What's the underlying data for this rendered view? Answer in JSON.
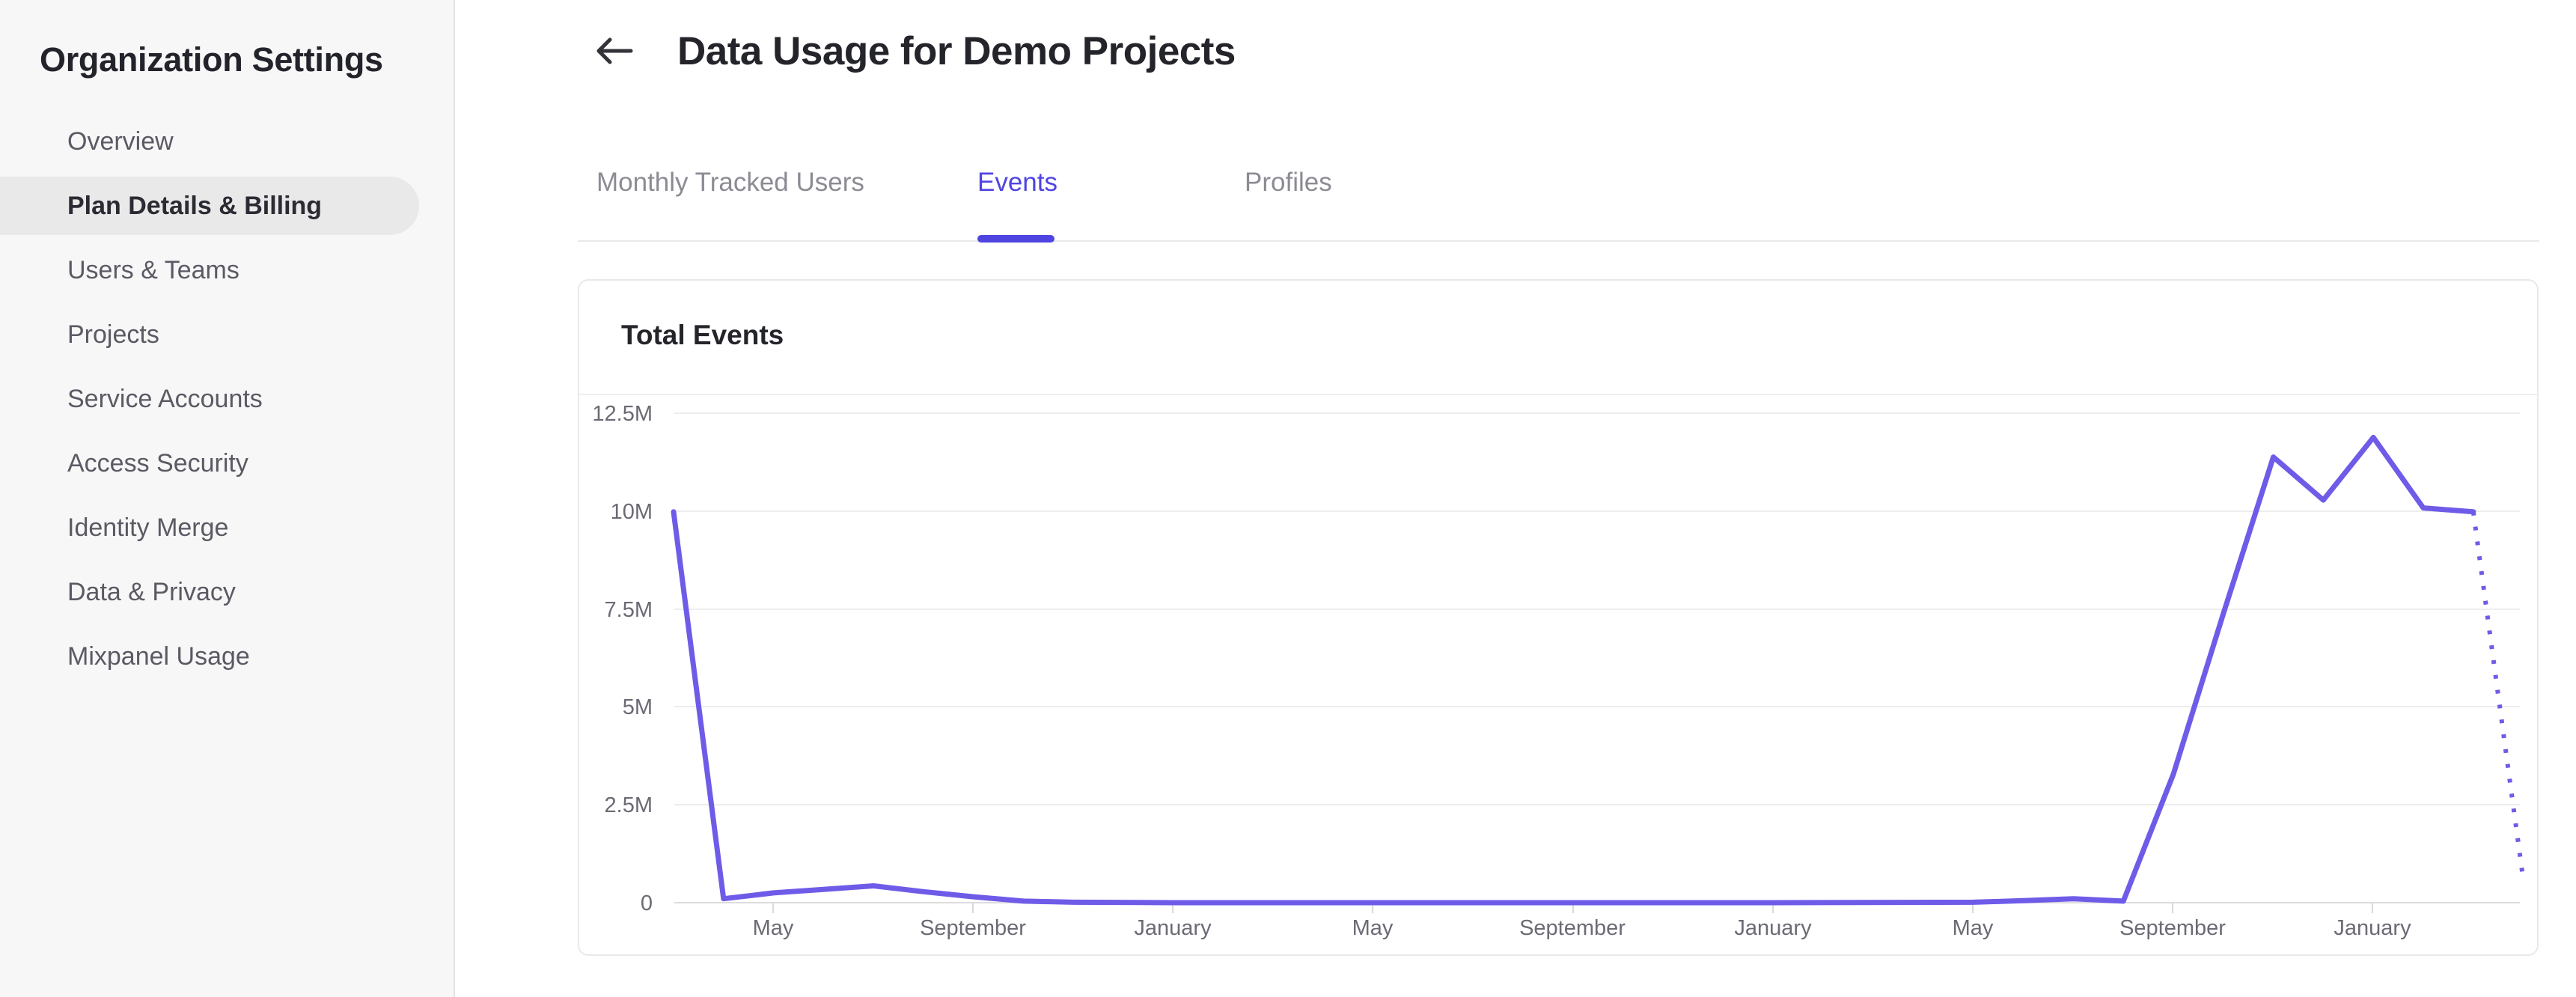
{
  "sidebar": {
    "title": "Organization Settings",
    "items": [
      {
        "label": "Overview",
        "selected": false
      },
      {
        "label": "Plan Details & Billing",
        "selected": true
      },
      {
        "label": "Users & Teams",
        "selected": false
      },
      {
        "label": "Projects",
        "selected": false
      },
      {
        "label": "Service Accounts",
        "selected": false
      },
      {
        "label": "Access Security",
        "selected": false
      },
      {
        "label": "Identity Merge",
        "selected": false
      },
      {
        "label": "Data & Privacy",
        "selected": false
      },
      {
        "label": "Mixpanel Usage",
        "selected": false
      }
    ]
  },
  "header": {
    "back_icon": "left-arrow",
    "title": "Data Usage for Demo Projects"
  },
  "tabs": [
    {
      "label": "Monthly Tracked Users",
      "active": false
    },
    {
      "label": "Events",
      "active": true
    },
    {
      "label": "Profiles",
      "active": false
    }
  ],
  "card": {
    "title": "Total Events"
  },
  "colors": {
    "accent": "#4f44e0",
    "line": "#6e5ce8",
    "sidebar_bg": "#f7f7f7",
    "selected_pill": "#e9e9e9",
    "grid": "#ededed",
    "axis_text": "#6a6a74",
    "dark_text": "#24242b",
    "muted_text": "#8b8b94"
  },
  "chart_data": {
    "type": "line",
    "title": "Total Events",
    "series_name": "Total Events",
    "legend": "none",
    "grid": "horizontal",
    "line_color": "#6e5ce8",
    "ylabel": "",
    "xlabel": "",
    "ylim_millions": [
      0,
      12.5
    ],
    "y_ticks": [
      "12.5M",
      "10M",
      "7.5M",
      "5M",
      "2.5M",
      "0"
    ],
    "y_tick_values_millions": [
      12.5,
      10,
      7.5,
      5,
      2.5,
      0
    ],
    "x_tick_labels": [
      "May",
      "September",
      "January",
      "May",
      "September",
      "January",
      "May",
      "September",
      "January"
    ],
    "x_tick_month_indices": [
      2,
      6,
      10,
      14,
      18,
      22,
      26,
      30,
      34
    ],
    "points_month_valueMillions": [
      [
        0,
        10.0
      ],
      [
        1,
        0.12
      ],
      [
        2,
        0.27
      ],
      [
        3,
        0.36
      ],
      [
        4,
        0.45
      ],
      [
        5,
        0.3
      ],
      [
        6,
        0.17
      ],
      [
        7,
        0.06
      ],
      [
        8,
        0.03
      ],
      [
        10,
        0.02
      ],
      [
        14,
        0.02
      ],
      [
        18,
        0.02
      ],
      [
        22,
        0.02
      ],
      [
        26,
        0.03
      ],
      [
        27,
        0.07
      ],
      [
        28,
        0.12
      ],
      [
        29,
        0.06
      ],
      [
        30,
        3.3
      ],
      [
        31,
        7.4
      ],
      [
        32,
        11.4
      ],
      [
        33,
        10.3
      ],
      [
        34,
        11.9
      ],
      [
        35,
        10.1
      ],
      [
        36,
        10.0
      ]
    ],
    "projected_points_month_valueMillions": [
      [
        36,
        10.0
      ],
      [
        37,
        0.6
      ]
    ],
    "projection_style": "dotted"
  }
}
